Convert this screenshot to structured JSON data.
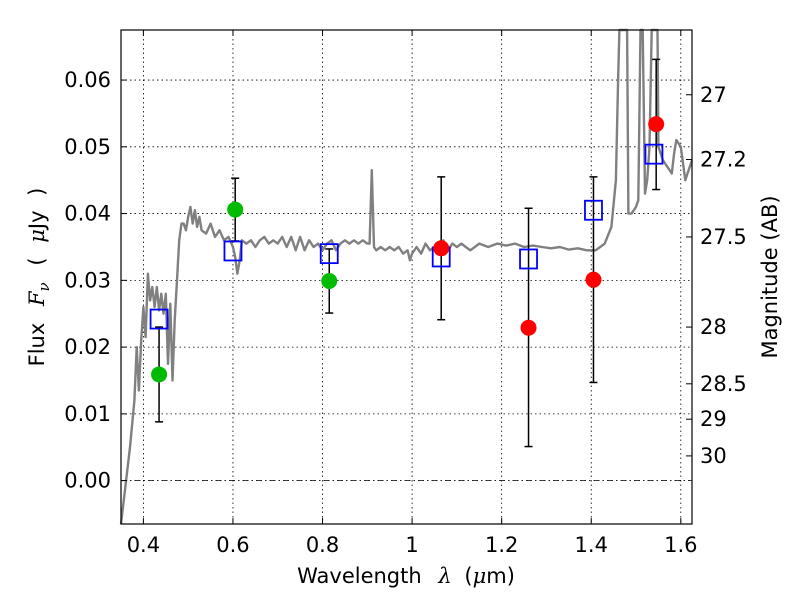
{
  "chart_data": {
    "type": "scatter",
    "xlabel_parts": [
      "Wavelength",
      "λ",
      "(",
      "μ",
      "m)"
    ],
    "ylabel_parts": [
      "Flux",
      "F",
      "ν",
      "(",
      "μ",
      "Jy",
      ")"
    ],
    "y2label": "Magnitude (AB)",
    "xlim": [
      0.35,
      1.625
    ],
    "ylim": [
      -0.0065,
      0.0675
    ],
    "x_ticks": [
      0.4,
      0.6,
      0.8,
      1.0,
      1.2,
      1.4,
      1.6
    ],
    "x_tick_labels": [
      "0.4",
      "0.6",
      "0.8",
      "1",
      "1.2",
      "1.4",
      "1.6"
    ],
    "y_ticks": [
      0.0,
      0.01,
      0.02,
      0.03,
      0.04,
      0.05,
      0.06
    ],
    "y_tick_labels": [
      "0.00",
      "0.01",
      "0.02",
      "0.03",
      "0.04",
      "0.05",
      "0.06"
    ],
    "y2_ticks": [
      {
        "label": "27",
        "flux": 0.0578
      },
      {
        "label": "27.2",
        "flux": 0.0481
      },
      {
        "label": "27.5",
        "flux": 0.0365
      },
      {
        "label": "28",
        "flux": 0.023
      },
      {
        "label": "28.5",
        "flux": 0.0145
      },
      {
        "label": "29",
        "flux": 0.0092
      },
      {
        "label": "30",
        "flux": 0.0037
      }
    ],
    "grid": true,
    "colors": {
      "spectrum": "#808080",
      "model_box": "#0000ff",
      "green_obs": "#00bb00",
      "red_obs": "#ff0000",
      "errorbar": "#000000"
    },
    "series": [
      {
        "kind": "line",
        "points": [
          [
            0.35,
            -0.0065
          ],
          [
            0.37,
            0.005
          ],
          [
            0.38,
            0.012
          ],
          [
            0.385,
            0.02
          ],
          [
            0.39,
            0.0135
          ],
          [
            0.395,
            0.021
          ],
          [
            0.4,
            0.026
          ],
          [
            0.405,
            0.0215
          ],
          [
            0.41,
            0.031
          ],
          [
            0.415,
            0.027
          ],
          [
            0.42,
            0.029
          ],
          [
            0.425,
            0.026
          ],
          [
            0.43,
            0.029
          ],
          [
            0.435,
            0.0255
          ],
          [
            0.44,
            0.028
          ],
          [
            0.445,
            0.025
          ],
          [
            0.45,
            0.028
          ],
          [
            0.455,
            0.0175
          ],
          [
            0.46,
            0.0265
          ],
          [
            0.465,
            0.015
          ],
          [
            0.47,
            0.024
          ],
          [
            0.475,
            0.03
          ],
          [
            0.48,
            0.036
          ],
          [
            0.485,
            0.0385
          ],
          [
            0.49,
            0.0385
          ],
          [
            0.495,
            0.0375
          ],
          [
            0.5,
            0.0395
          ],
          [
            0.505,
            0.041
          ],
          [
            0.51,
            0.0385
          ],
          [
            0.515,
            0.0405
          ],
          [
            0.52,
            0.038
          ],
          [
            0.525,
            0.0395
          ],
          [
            0.53,
            0.0375
          ],
          [
            0.54,
            0.037
          ],
          [
            0.55,
            0.0385
          ],
          [
            0.56,
            0.0365
          ],
          [
            0.57,
            0.0375
          ],
          [
            0.58,
            0.036
          ],
          [
            0.59,
            0.0365
          ],
          [
            0.6,
            0.035
          ],
          [
            0.605,
            0.0335
          ],
          [
            0.61,
            0.031
          ],
          [
            0.615,
            0.033
          ],
          [
            0.62,
            0.036
          ],
          [
            0.63,
            0.0355
          ],
          [
            0.64,
            0.036
          ],
          [
            0.65,
            0.035
          ],
          [
            0.66,
            0.036
          ],
          [
            0.67,
            0.0365
          ],
          [
            0.68,
            0.0355
          ],
          [
            0.69,
            0.036
          ],
          [
            0.7,
            0.0355
          ],
          [
            0.71,
            0.0365
          ],
          [
            0.72,
            0.035
          ],
          [
            0.73,
            0.0365
          ],
          [
            0.74,
            0.0345
          ],
          [
            0.75,
            0.0365
          ],
          [
            0.76,
            0.0345
          ],
          [
            0.77,
            0.036
          ],
          [
            0.78,
            0.035
          ],
          [
            0.79,
            0.0355
          ],
          [
            0.8,
            0.0345
          ],
          [
            0.81,
            0.0355
          ],
          [
            0.82,
            0.036
          ],
          [
            0.83,
            0.0345
          ],
          [
            0.84,
            0.0355
          ],
          [
            0.85,
            0.036
          ],
          [
            0.86,
            0.0355
          ],
          [
            0.87,
            0.036
          ],
          [
            0.88,
            0.0355
          ],
          [
            0.89,
            0.036
          ],
          [
            0.9,
            0.0355
          ],
          [
            0.905,
            0.0355
          ],
          [
            0.91,
            0.0465
          ],
          [
            0.915,
            0.035
          ],
          [
            0.92,
            0.0345
          ],
          [
            0.93,
            0.035
          ],
          [
            0.94,
            0.0345
          ],
          [
            0.95,
            0.035
          ],
          [
            0.96,
            0.0345
          ],
          [
            0.97,
            0.035
          ],
          [
            0.98,
            0.034
          ],
          [
            0.99,
            0.0345
          ],
          [
            0.995,
            0.033
          ],
          [
            1.0,
            0.034
          ],
          [
            1.01,
            0.035
          ],
          [
            1.02,
            0.034
          ],
          [
            1.03,
            0.0355
          ],
          [
            1.04,
            0.0345
          ],
          [
            1.05,
            0.035
          ],
          [
            1.06,
            0.0345
          ],
          [
            1.07,
            0.036
          ],
          [
            1.08,
            0.0345
          ],
          [
            1.09,
            0.0355
          ],
          [
            1.1,
            0.035
          ],
          [
            1.11,
            0.0355
          ],
          [
            1.12,
            0.035
          ],
          [
            1.13,
            0.0345
          ],
          [
            1.15,
            0.0355
          ],
          [
            1.17,
            0.035
          ],
          [
            1.19,
            0.0355
          ],
          [
            1.21,
            0.0352
          ],
          [
            1.23,
            0.0355
          ],
          [
            1.25,
            0.035
          ],
          [
            1.27,
            0.0352
          ],
          [
            1.29,
            0.035
          ],
          [
            1.31,
            0.0348
          ],
          [
            1.33,
            0.035
          ],
          [
            1.35,
            0.0346
          ],
          [
            1.37,
            0.0348
          ],
          [
            1.39,
            0.0345
          ],
          [
            1.41,
            0.0345
          ],
          [
            1.43,
            0.0355
          ],
          [
            1.445,
            0.038
          ],
          [
            1.455,
            0.045
          ],
          [
            1.46,
            0.06
          ],
          [
            1.463,
            0.0675
          ],
          [
            1.48,
            0.0675
          ],
          [
            1.483,
            0.04
          ],
          [
            1.49,
            0.04
          ],
          [
            1.5,
            0.041
          ],
          [
            1.505,
            0.042
          ],
          [
            1.51,
            0.0675
          ],
          [
            1.515,
            0.0675
          ],
          [
            1.52,
            0.043
          ],
          [
            1.525,
            0.045
          ],
          [
            1.53,
            0.05
          ],
          [
            1.535,
            0.0675
          ],
          [
            1.548,
            0.0675
          ],
          [
            1.55,
            0.05
          ],
          [
            1.56,
            0.048
          ],
          [
            1.57,
            0.047
          ],
          [
            1.58,
            0.046
          ],
          [
            1.585,
            0.049
          ],
          [
            1.59,
            0.051
          ],
          [
            1.6,
            0.05
          ],
          [
            1.61,
            0.045
          ],
          [
            1.615,
            0.046
          ],
          [
            1.625,
            0.048
          ]
        ]
      },
      {
        "kind": "model_squares",
        "points": [
          [
            0.435,
            0.0242
          ],
          [
            0.6,
            0.0344
          ],
          [
            0.815,
            0.034
          ],
          [
            1.065,
            0.0335
          ],
          [
            1.26,
            0.0332
          ],
          [
            1.405,
            0.0405
          ],
          [
            1.54,
            0.0489
          ]
        ]
      },
      {
        "kind": "observed_green",
        "points": [
          {
            "x": 0.435,
            "y": 0.0159,
            "lo": 0.0088,
            "hi": 0.023
          },
          {
            "x": 0.605,
            "y": 0.0406,
            "lo": 0.0359,
            "hi": 0.0453
          },
          {
            "x": 0.815,
            "y": 0.0299,
            "lo": 0.0251,
            "hi": 0.0347
          }
        ]
      },
      {
        "kind": "observed_red",
        "points": [
          {
            "x": 1.065,
            "y": 0.0348,
            "lo": 0.0241,
            "hi": 0.0455
          },
          {
            "x": 1.26,
            "y": 0.0229,
            "lo": 0.0051,
            "hi": 0.0408
          },
          {
            "x": 1.405,
            "y": 0.0301,
            "lo": 0.0147,
            "hi": 0.0455
          },
          {
            "x": 1.545,
            "y": 0.0534,
            "lo": 0.0436,
            "hi": 0.0631
          }
        ]
      }
    ]
  }
}
